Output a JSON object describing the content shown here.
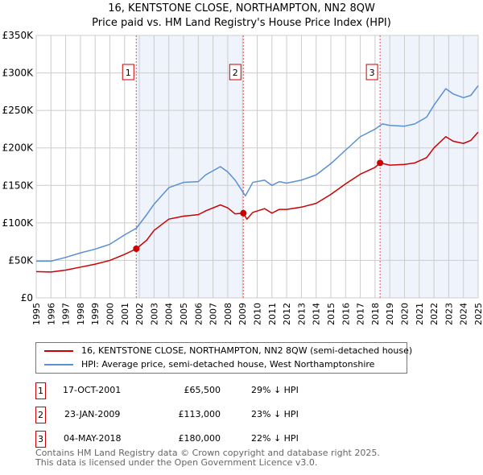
{
  "header": {
    "title": "16, KENTSTONE CLOSE, NORTHAMPTON, NN2 8QW",
    "subtitle": "Price paid vs. HM Land Registry's House Price Index (HPI)"
  },
  "chart_data": {
    "type": "line",
    "title": "16, KENTSTONE CLOSE, NORTHAMPTON, NN2 8QW",
    "subtitle": "Price paid vs. HM Land Registry's House Price Index (HPI)",
    "xlim": [
      1995,
      2025
    ],
    "ylim": [
      0,
      350000
    ],
    "x_ticks": [
      "1995",
      "1996",
      "1997",
      "1998",
      "1999",
      "2000",
      "2001",
      "2002",
      "2003",
      "2004",
      "2005",
      "2006",
      "2007",
      "2008",
      "2009",
      "2010",
      "2011",
      "2012",
      "2013",
      "2014",
      "2015",
      "2016",
      "2017",
      "2018",
      "2019",
      "2020",
      "2021",
      "2022",
      "2023",
      "2024",
      "2025"
    ],
    "y_ticks": [
      {
        "v": 0,
        "label": "£0"
      },
      {
        "v": 50000,
        "label": "£50K"
      },
      {
        "v": 100000,
        "label": "£100K"
      },
      {
        "v": 150000,
        "label": "£150K"
      },
      {
        "v": 200000,
        "label": "£200K"
      },
      {
        "v": 250000,
        "label": "£250K"
      },
      {
        "v": 300000,
        "label": "£300K"
      },
      {
        "v": 350000,
        "label": "£350K"
      }
    ],
    "grid": true,
    "series": [
      {
        "name": "16, KENTSTONE CLOSE, NORTHAMPTON, NN2 8QW (semi-detached house)",
        "color": "#cc0000",
        "x": [
          1995,
          1996,
          1997,
          1998,
          1999,
          2000,
          2001,
          2001.8,
          2002.5,
          2003,
          2004,
          2005,
          2006,
          2006.5,
          2007.5,
          2008,
          2008.5,
          2009.06,
          2009.3,
          2009.7,
          2010.5,
          2011,
          2011.5,
          2012,
          2013,
          2014,
          2015,
          2016,
          2017,
          2018,
          2018.34,
          2019,
          2020,
          2020.7,
          2021.5,
          2022,
          2022.8,
          2023.3,
          2024,
          2024.5,
          2025
        ],
        "y": [
          35000,
          34500,
          37000,
          41000,
          45000,
          50000,
          58000,
          65500,
          77000,
          90000,
          105000,
          109000,
          111000,
          116000,
          124000,
          120000,
          112000,
          113000,
          105000,
          114000,
          119000,
          113000,
          118000,
          118000,
          121000,
          126000,
          138000,
          152000,
          165000,
          174000,
          180000,
          177000,
          178000,
          180000,
          187000,
          200000,
          215000,
          209000,
          206000,
          210000,
          221000
        ]
      },
      {
        "name": "HPI: Average price, semi-detached house, West Northamptonshire",
        "color": "#5b8fd4",
        "x": [
          1995,
          1996,
          1997,
          1998,
          1999,
          2000,
          2001,
          2001.8,
          2002.5,
          2003,
          2004,
          2005,
          2006,
          2006.5,
          2007.5,
          2008,
          2008.5,
          2009.2,
          2009.7,
          2010.5,
          2011,
          2011.5,
          2012,
          2013,
          2014,
          2015,
          2016,
          2017,
          2018,
          2018.5,
          2019,
          2020,
          2020.7,
          2021.5,
          2022,
          2022.8,
          2023.3,
          2024,
          2024.5,
          2025
        ],
        "y": [
          49000,
          49000,
          54000,
          60000,
          65000,
          71500,
          84000,
          93000,
          111000,
          125000,
          147000,
          154000,
          155000,
          164000,
          175000,
          168000,
          157000,
          136000,
          154000,
          157000,
          150000,
          155000,
          153000,
          157000,
          164000,
          179000,
          197000,
          215000,
          225000,
          232000,
          230000,
          229000,
          232000,
          241000,
          257000,
          279000,
          272000,
          267000,
          270000,
          283000
        ]
      }
    ],
    "sales": [
      {
        "id": "1",
        "x": 2001.79,
        "y": 65500,
        "date": "17-OCT-2001",
        "price": "£65,500",
        "delta": "29% ↓ HPI"
      },
      {
        "id": "2",
        "x": 2009.06,
        "y": 113000,
        "date": "23-JAN-2009",
        "price": "£113,000",
        "delta": "23% ↓ HPI"
      },
      {
        "id": "3",
        "x": 2018.34,
        "y": 180000,
        "date": "04-MAY-2018",
        "price": "£180,000",
        "delta": "22% ↓ HPI"
      }
    ],
    "shaded_ranges": [
      [
        2001.79,
        2009.06
      ],
      [
        2018.34,
        2025
      ]
    ]
  },
  "legend": {
    "items": [
      {
        "label": "16, KENTSTONE CLOSE, NORTHAMPTON, NN2 8QW (semi-detached house)",
        "color": "#cc0000"
      },
      {
        "label": "HPI: Average price, semi-detached house, West Northamptonshire",
        "color": "#5b8fd4"
      }
    ]
  },
  "footer": {
    "line1": "Contains HM Land Registry data © Crown copyright and database right 2025.",
    "line2": "This data is licensed under the Open Government Licence v3.0."
  }
}
